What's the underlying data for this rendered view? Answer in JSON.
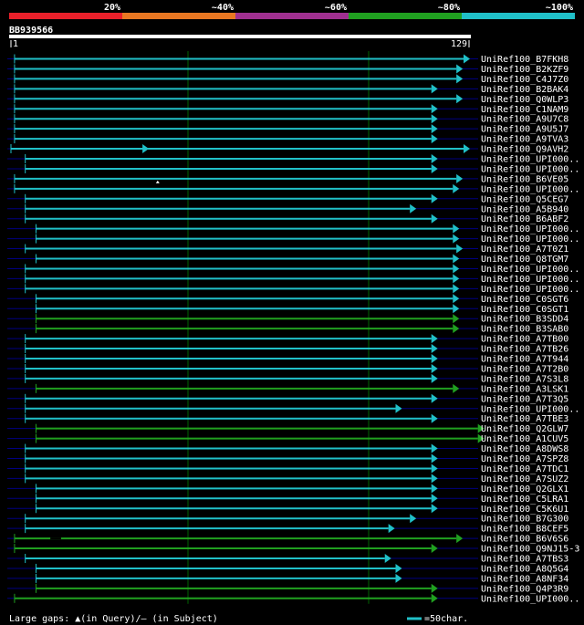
{
  "chart_data": {
    "type": "alignment",
    "title": "BB939566",
    "query_start": 1,
    "query_end": 129,
    "identity_legend": [
      {
        "label": "20%",
        "color": "#e8202a"
      },
      {
        "label": "~40%",
        "color": "#e87722"
      },
      {
        "label": "~60%",
        "color": "#a03090"
      },
      {
        "label": "~80%",
        "color": "#20a020"
      },
      {
        "label": "~100%",
        "color": "#20c0c8"
      }
    ],
    "hits": [
      {
        "name": "UniRef100_B7FKH8",
        "start": 2,
        "end": 129,
        "identity": "~100%"
      },
      {
        "name": "UniRef100_B2KZF9",
        "start": 2,
        "end": 127,
        "identity": "~100%"
      },
      {
        "name": "UniRef100_C4J7Z0",
        "start": 2,
        "end": 127,
        "identity": "~100%"
      },
      {
        "name": "UniRef100_B2BAK4",
        "start": 2,
        "end": 120,
        "identity": "~100%"
      },
      {
        "name": "UniRef100_Q0WLP3",
        "start": 2,
        "end": 127,
        "identity": "~100%"
      },
      {
        "name": "UniRef100_C1NAM9",
        "start": 2,
        "end": 120,
        "identity": "~100%"
      },
      {
        "name": "UniRef100_A9U7C8",
        "start": 2,
        "end": 120,
        "identity": "~100%"
      },
      {
        "name": "UniRef100_A9U5J7",
        "start": 2,
        "end": 120,
        "identity": "~100%"
      },
      {
        "name": "UniRef100_A9TVA3",
        "start": 2,
        "end": 120,
        "identity": "~100%"
      },
      {
        "name": "UniRef100_Q9AVH2",
        "start": 1,
        "end": 129,
        "identity": "~100%",
        "gap_at": 38
      },
      {
        "name": "UniRef100_UPI000..",
        "start": 5,
        "end": 120,
        "identity": "~100%"
      },
      {
        "name": "UniRef100_UPI000..",
        "start": 5,
        "end": 120,
        "identity": "~100%"
      },
      {
        "name": "UniRef100_B6VE05",
        "start": 2,
        "end": 127,
        "identity": "~100%",
        "query_gap_at": 42
      },
      {
        "name": "UniRef100_UPI000..",
        "start": 2,
        "end": 126,
        "identity": "~100%"
      },
      {
        "name": "UniRef100_Q5CEG7",
        "start": 5,
        "end": 120,
        "identity": "~100%"
      },
      {
        "name": "UniRef100_A5B940",
        "start": 5,
        "end": 114,
        "identity": "~100%"
      },
      {
        "name": "UniRef100_B6ABF2",
        "start": 5,
        "end": 120,
        "identity": "~100%"
      },
      {
        "name": "UniRef100_UPI000..",
        "start": 8,
        "end": 126,
        "identity": "~100%"
      },
      {
        "name": "UniRef100_UPI000..",
        "start": 8,
        "end": 126,
        "identity": "~100%"
      },
      {
        "name": "UniRef100_A7T0Z1",
        "start": 5,
        "end": 127,
        "identity": "~100%"
      },
      {
        "name": "UniRef100_Q8TGM7",
        "start": 8,
        "end": 126,
        "identity": "~100%"
      },
      {
        "name": "UniRef100_UPI000..",
        "start": 5,
        "end": 126,
        "identity": "~100%"
      },
      {
        "name": "UniRef100_UPI000..",
        "start": 5,
        "end": 126,
        "identity": "~100%"
      },
      {
        "name": "UniRef100_UPI000..",
        "start": 5,
        "end": 126,
        "identity": "~100%"
      },
      {
        "name": "UniRef100_C0SGT6",
        "start": 8,
        "end": 126,
        "identity": "~100%"
      },
      {
        "name": "UniRef100_C0SGT1",
        "start": 8,
        "end": 126,
        "identity": "~100%"
      },
      {
        "name": "UniRef100_B3SDD4",
        "start": 8,
        "end": 126,
        "identity": "~80%"
      },
      {
        "name": "UniRef100_B3SAB0",
        "start": 8,
        "end": 126,
        "identity": "~80%"
      },
      {
        "name": "UniRef100_A7TB00",
        "start": 5,
        "end": 120,
        "identity": "~100%"
      },
      {
        "name": "UniRef100_A7TB26",
        "start": 5,
        "end": 120,
        "identity": "~100%"
      },
      {
        "name": "UniRef100_A7T944",
        "start": 5,
        "end": 120,
        "identity": "~100%"
      },
      {
        "name": "UniRef100_A7T2B0",
        "start": 5,
        "end": 120,
        "identity": "~100%"
      },
      {
        "name": "UniRef100_A7S3L8",
        "start": 5,
        "end": 120,
        "identity": "~100%"
      },
      {
        "name": "UniRef100_A3LSK1",
        "start": 8,
        "end": 126,
        "identity": "~80%"
      },
      {
        "name": "UniRef100_A7T3Q5",
        "start": 5,
        "end": 120,
        "identity": "~100%"
      },
      {
        "name": "UniRef100_UPI000..",
        "start": 5,
        "end": 110,
        "identity": "~100%"
      },
      {
        "name": "UniRef100_A7TBE3",
        "start": 5,
        "end": 120,
        "identity": "~100%"
      },
      {
        "name": "UniRef100_Q2GLW7",
        "start": 8,
        "end": 133,
        "identity": "~80%"
      },
      {
        "name": "UniRef100_A1CUV5",
        "start": 8,
        "end": 133,
        "identity": "~80%"
      },
      {
        "name": "UniRef100_A8DWS8",
        "start": 5,
        "end": 120,
        "identity": "~100%"
      },
      {
        "name": "UniRef100_A7SPZ8",
        "start": 5,
        "end": 120,
        "identity": "~100%"
      },
      {
        "name": "UniRef100_A7TDC1",
        "start": 5,
        "end": 120,
        "identity": "~100%"
      },
      {
        "name": "UniRef100_A7SUZ2",
        "start": 5,
        "end": 120,
        "identity": "~100%"
      },
      {
        "name": "UniRef100_Q2GLX1",
        "start": 8,
        "end": 120,
        "identity": "~100%"
      },
      {
        "name": "UniRef100_C5LRA1",
        "start": 8,
        "end": 120,
        "identity": "~100%"
      },
      {
        "name": "UniRef100_C5K6U1",
        "start": 8,
        "end": 120,
        "identity": "~100%"
      },
      {
        "name": "UniRef100_B7G300",
        "start": 5,
        "end": 114,
        "identity": "~100%"
      },
      {
        "name": "UniRef100_B8CEF5",
        "start": 5,
        "end": 108,
        "identity": "~100%"
      },
      {
        "name": "UniRef100_B6V6S6",
        "start": 2,
        "end": 127,
        "identity": "~80%",
        "subject_gap": [
          12,
          15
        ]
      },
      {
        "name": "UniRef100_Q9NJ15-3",
        "start": 2,
        "end": 120,
        "identity": "~80%"
      },
      {
        "name": "UniRef100_A7TBS3",
        "start": 5,
        "end": 107,
        "identity": "~100%"
      },
      {
        "name": "UniRef100_A8Q5G4",
        "start": 8,
        "end": 110,
        "identity": "~100%"
      },
      {
        "name": "UniRef100_A8NF34",
        "start": 8,
        "end": 110,
        "identity": "~100%"
      },
      {
        "name": "UniRef100_Q4P3R9",
        "start": 8,
        "end": 120,
        "identity": "~80%"
      },
      {
        "name": "UniRef100_UPI000..",
        "start": 2,
        "end": 120,
        "identity": "~80%"
      }
    ],
    "footer_left": "Large gaps: ▲(in Query)/– (in Subject)",
    "scale_legend": "=50char."
  },
  "colors": {
    "background": "#000000",
    "grid": "#006400",
    "row_line": "#000080",
    "query_bar": "#ffffff"
  }
}
